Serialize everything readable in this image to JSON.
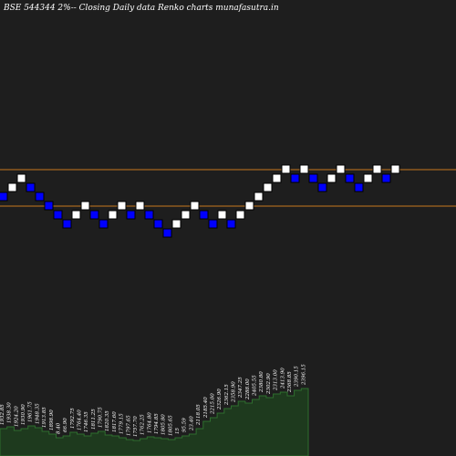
{
  "title": "BSE 544344  2%-- Closing Daily data Renko  charts munafasutra.in",
  "colors": {
    "background": "#1e1e1e",
    "up_brick": "#ffffff",
    "down_brick": "#0000ff",
    "brick_outline": "#000000",
    "level_line": "#c8781e",
    "volume_area": "#1e3a1e",
    "volume_line": "#2e6e2e"
  },
  "chart_data": {
    "type": "renko",
    "title": "BSE 544344  2%-- Closing Daily data Renko  charts munafasutra.in",
    "brick_size_percent": 2,
    "bricks": [
      {
        "dir": "down",
        "level": 9
      },
      {
        "dir": "up",
        "level": 10
      },
      {
        "dir": "up",
        "level": 11
      },
      {
        "dir": "down",
        "level": 10
      },
      {
        "dir": "down",
        "level": 9
      },
      {
        "dir": "down",
        "level": 8
      },
      {
        "dir": "down",
        "level": 7
      },
      {
        "dir": "down",
        "level": 6
      },
      {
        "dir": "up",
        "level": 7
      },
      {
        "dir": "up",
        "level": 8
      },
      {
        "dir": "down",
        "level": 7
      },
      {
        "dir": "down",
        "level": 6
      },
      {
        "dir": "up",
        "level": 7
      },
      {
        "dir": "up",
        "level": 8
      },
      {
        "dir": "down",
        "level": 7
      },
      {
        "dir": "up",
        "level": 8
      },
      {
        "dir": "down",
        "level": 7
      },
      {
        "dir": "down",
        "level": 6
      },
      {
        "dir": "down",
        "level": 5
      },
      {
        "dir": "up",
        "level": 6
      },
      {
        "dir": "up",
        "level": 7
      },
      {
        "dir": "up",
        "level": 8
      },
      {
        "dir": "down",
        "level": 7
      },
      {
        "dir": "down",
        "level": 6
      },
      {
        "dir": "up",
        "level": 7
      },
      {
        "dir": "down",
        "level": 6
      },
      {
        "dir": "up",
        "level": 7
      },
      {
        "dir": "up",
        "level": 8
      },
      {
        "dir": "up",
        "level": 9
      },
      {
        "dir": "up",
        "level": 10
      },
      {
        "dir": "up",
        "level": 11
      },
      {
        "dir": "up",
        "level": 12
      },
      {
        "dir": "down",
        "level": 11
      },
      {
        "dir": "up",
        "level": 12
      },
      {
        "dir": "down",
        "level": 11
      },
      {
        "dir": "down",
        "level": 10
      },
      {
        "dir": "up",
        "level": 11
      },
      {
        "dir": "up",
        "level": 12
      },
      {
        "dir": "down",
        "level": 11
      },
      {
        "dir": "down",
        "level": 10
      },
      {
        "dir": "up",
        "level": 11
      },
      {
        "dir": "up",
        "level": 12
      },
      {
        "dir": "down",
        "level": 11
      },
      {
        "dir": "up",
        "level": 12
      }
    ],
    "levels": [
      {
        "level": 12.5
      },
      {
        "level": 8.5
      }
    ],
    "volume_labels": [
      "1932.85",
      "1938.30",
      "1924.20",
      "1930.90",
      "1961.75",
      "1948.35",
      "1913.85",
      "1898.90",
      "8.40",
      "66.90",
      "1792.75",
      "1764.40",
      "1746.35",
      "1811.25",
      "1790.75",
      "1820.35",
      "1817.60",
      "1779.15",
      "1797.65",
      "1757.70",
      "1762.25",
      "1764.80",
      "1794.85",
      "1805.80",
      "1805.65",
      "15",
      "95.59",
      "23.40",
      "2118.05",
      "2185.40",
      "2215.00",
      "2326.90",
      "2362.15",
      "2358.90",
      "2347.25",
      "2288.00",
      "2405.55",
      "2380.80",
      "2302.90",
      "2313.00",
      "2413.90",
      "2368.85",
      "2390.15",
      "2396.15"
    ],
    "volume_profile": [
      0.3,
      0.32,
      0.28,
      0.3,
      0.33,
      0.31,
      0.27,
      0.24,
      0.2,
      0.22,
      0.26,
      0.24,
      0.22,
      0.25,
      0.27,
      0.23,
      0.22,
      0.2,
      0.18,
      0.17,
      0.19,
      0.21,
      0.2,
      0.19,
      0.18,
      0.2,
      0.22,
      0.24,
      0.3,
      0.38,
      0.42,
      0.47,
      0.52,
      0.55,
      0.6,
      0.58,
      0.62,
      0.66,
      0.64,
      0.68,
      0.7,
      0.66,
      0.72,
      0.74
    ]
  }
}
